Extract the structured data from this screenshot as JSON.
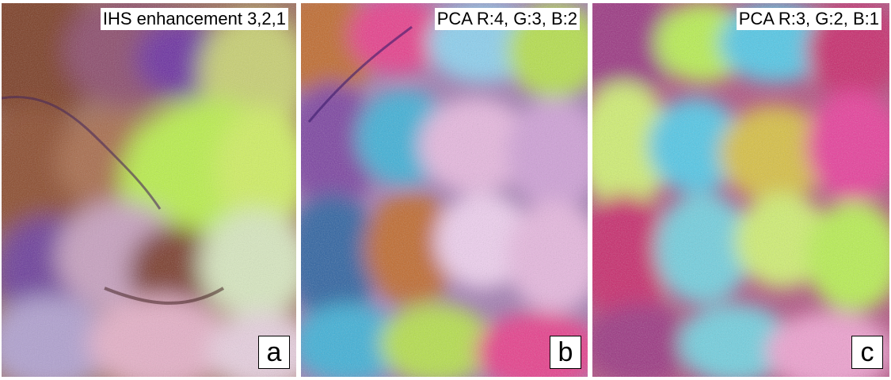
{
  "panels": [
    {
      "caption": "IHS enhancement  3,2,1",
      "letter": "a"
    },
    {
      "caption": "PCA  R:4, G:3, B:2",
      "letter": "b"
    },
    {
      "caption": "PCA  R:3, G:2, B:1",
      "letter": "c"
    }
  ],
  "colors": {
    "panel_a_palette": [
      "#8b4a2a",
      "#a0522d",
      "#6b2fa0",
      "#c7e85a",
      "#b9f04a",
      "#d8a7d0",
      "#e6b0c8",
      "#5a3a7a",
      "#cfe8e0"
    ],
    "panel_b_palette": [
      "#7a3fa0",
      "#3ab0d8",
      "#e83a8a",
      "#b5e04a",
      "#e8b8e0",
      "#c0682a",
      "#2a60a0",
      "#f0d0f0",
      "#8ad0f0"
    ],
    "panel_c_palette": [
      "#c8286a",
      "#b8f050",
      "#50c8e8",
      "#e83a9a",
      "#d8c040",
      "#9a3080",
      "#70d0e0",
      "#f0a0d0",
      "#d0f070"
    ]
  }
}
